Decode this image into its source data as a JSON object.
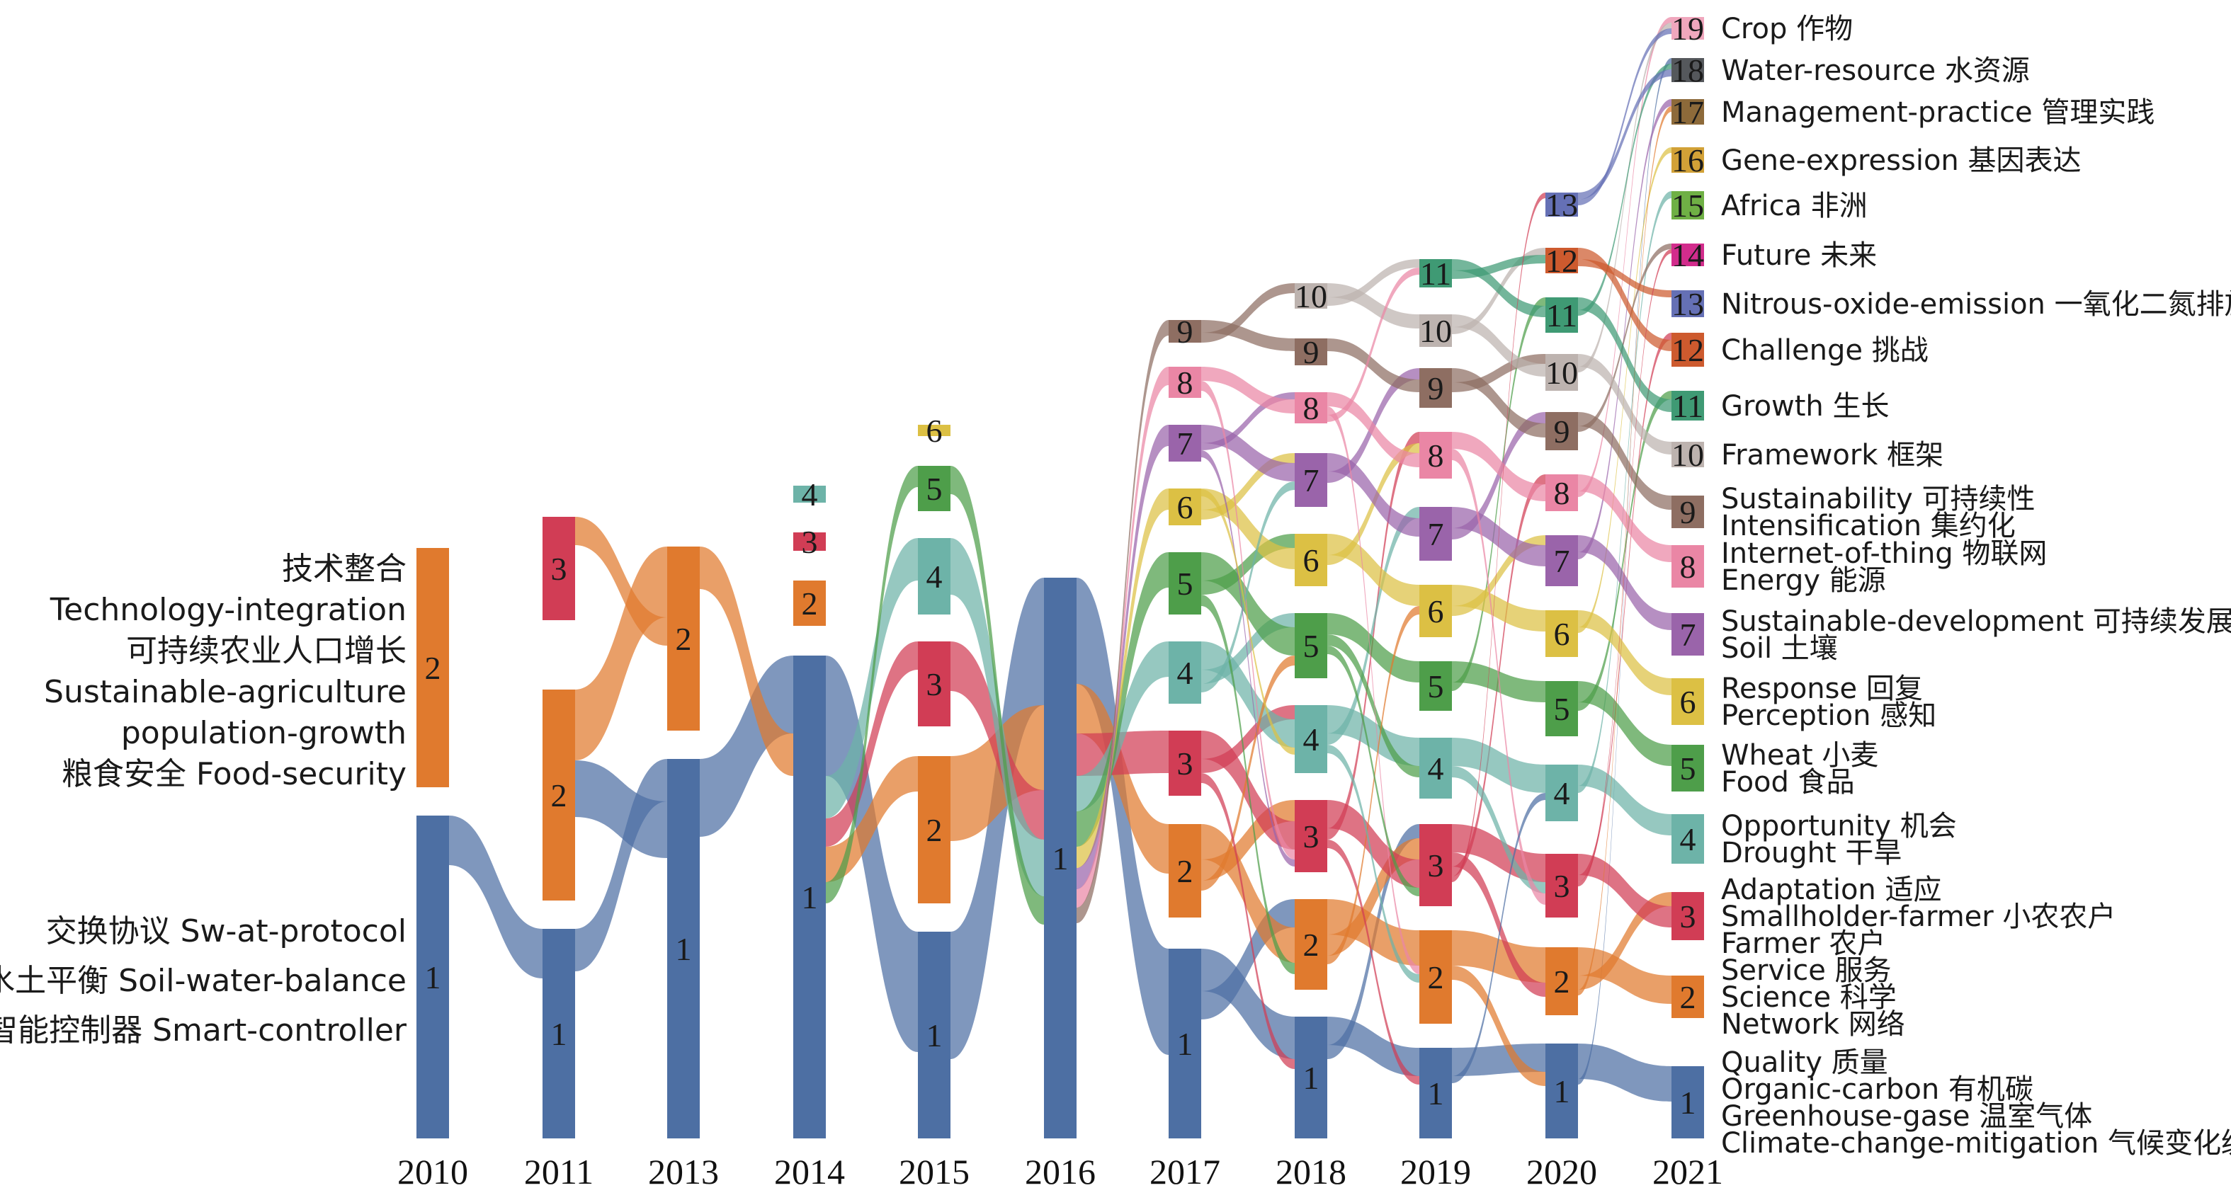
{
  "colors": {
    "1": "#4d6fa3",
    "2": "#e07a2e",
    "3": "#d13d55",
    "4": "#6db3a8",
    "5": "#4e9e4a",
    "6": "#dcc044",
    "7": "#9a64aa",
    "8": "#ea86a5",
    "9": "#8e6e62",
    "10": "#bdb3af",
    "11": "#3f9a74",
    "12": "#cd5a2e",
    "13": "#6570b5",
    "14": "#d22c8c",
    "15": "#6fb045",
    "16": "#d2a137",
    "17": "#8d6a3a",
    "18": "#55585c",
    "19": "#f0a7bd"
  },
  "years": [
    "2010",
    "2011",
    "2013",
    "2014",
    "2015",
    "2016",
    "2017",
    "2018",
    "2019",
    "2020",
    "2021"
  ],
  "left_labels": {
    "cluster2": [
      "技术整合",
      "Technology-integration",
      "可持续农业人口增长",
      "Sustainable-agriculture",
      "population-growth",
      "粮食安全 Food-security"
    ],
    "cluster1": [
      "交换协议 Sw-at-protocol",
      "水土平衡 Soil-water-balance",
      "智能控制器 Smart-controller"
    ]
  },
  "right_labels": [
    {
      "id": 19,
      "lines": [
        "Crop 作物"
      ]
    },
    {
      "id": 18,
      "lines": [
        "Water-resource 水资源"
      ]
    },
    {
      "id": 17,
      "lines": [
        "Management-practice 管理实践"
      ]
    },
    {
      "id": 16,
      "lines": [
        "Gene-expression 基因表达"
      ]
    },
    {
      "id": 15,
      "lines": [
        "Africa 非洲"
      ]
    },
    {
      "id": 14,
      "lines": [
        "Future 未来"
      ]
    },
    {
      "id": 13,
      "lines": [
        "Nitrous-oxide-emission 一氧化二氮排放"
      ]
    },
    {
      "id": 12,
      "lines": [
        "Challenge 挑战"
      ]
    },
    {
      "id": 11,
      "lines": [
        "Growth 生长"
      ]
    },
    {
      "id": 10,
      "lines": [
        "Framework 框架"
      ]
    },
    {
      "id": 9,
      "lines": [
        "Sustainability 可持续性",
        "Intensification 集约化"
      ]
    },
    {
      "id": 8,
      "lines": [
        "Internet-of-thing 物联网",
        "Energy 能源"
      ]
    },
    {
      "id": 7,
      "lines": [
        "Sustainable-development 可持续发展",
        "Soil 土壤"
      ]
    },
    {
      "id": 6,
      "lines": [
        "Response 回复",
        "Perception 感知"
      ]
    },
    {
      "id": 5,
      "lines": [
        "Wheat 小麦",
        "Food 食品"
      ]
    },
    {
      "id": 4,
      "lines": [
        "Opportunity 机会",
        "Drought 干旱"
      ]
    },
    {
      "id": 3,
      "lines": [
        "Adaptation 适应",
        "Smallholder-farmer 小农农户",
        "Farmer 农户"
      ]
    },
    {
      "id": 2,
      "lines": [
        "Service 服务",
        "Science 科学",
        "Network 网络"
      ]
    },
    {
      "id": 1,
      "lines": [
        "Quality 质量",
        "Organic-carbon 有机碳",
        "Greenhouse-gase 温室气体",
        "Climate-change-mitigation 气候变化缓解"
      ]
    }
  ]
}
